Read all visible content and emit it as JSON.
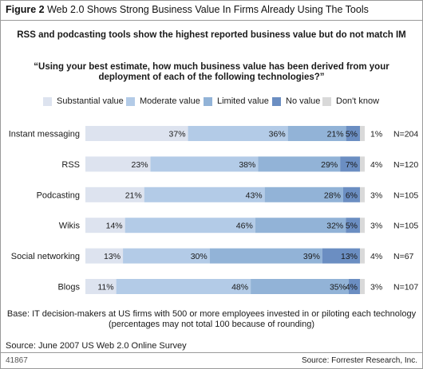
{
  "figure": {
    "label": "Figure 2",
    "title": "Web 2.0 Shows Strong Business Value In Firms Already Using The Tools",
    "subtitle": "RSS and podcasting tools show the highest reported business value but do not match IM",
    "question": "“Using your best estimate, how much business value has been derived from your deployment of each of the following technologies?”",
    "base_line1": "Base: IT decision-makers at US firms with 500 or more employees invested in or piloting each technology",
    "base_line2": "(percentages may not total 100 because of rounding)",
    "source": "Source: June 2007 US Web 2.0 Online Survey",
    "figure_id": "41867",
    "credit": "Source: Forrester Research, Inc."
  },
  "chart_data": {
    "type": "bar",
    "orientation": "horizontal",
    "stacked": true,
    "percent_suffix": "%",
    "categories": [
      "Instant messaging",
      "RSS",
      "Podcasting",
      "Wikis",
      "Social networking",
      "Blogs"
    ],
    "series": [
      {
        "name": "Substantial value",
        "color": "#dde3ef",
        "values": [
          37,
          23,
          21,
          14,
          13,
          11
        ]
      },
      {
        "name": "Moderate value",
        "color": "#b3cbe7",
        "values": [
          36,
          38,
          43,
          46,
          30,
          48
        ]
      },
      {
        "name": "Limited value",
        "color": "#92b3d7",
        "values": [
          21,
          29,
          28,
          32,
          39,
          35
        ]
      },
      {
        "name": "No value",
        "color": "#6b8ec2",
        "values": [
          5,
          7,
          6,
          5,
          13,
          4
        ]
      },
      {
        "name": "Don't know",
        "color": "#d9d9d9",
        "values": [
          1,
          4,
          3,
          3,
          4,
          3
        ]
      }
    ],
    "sample_sizes": [
      "N=204",
      "N=120",
      "N=105",
      "N=105",
      "N=67",
      "N=107"
    ],
    "legend_position": "top",
    "grid": false
  }
}
